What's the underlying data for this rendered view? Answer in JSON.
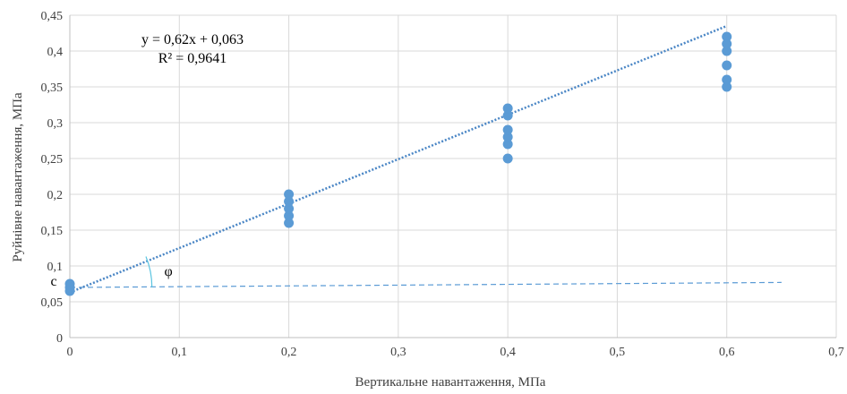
{
  "chart_data": {
    "type": "scatter",
    "xlabel": "Вертикальне навантаження, МПа",
    "ylabel": "Руйнівне навантаження, МПа",
    "xlim": [
      0,
      0.7
    ],
    "ylim": [
      0,
      0.45
    ],
    "x_ticks": [
      "0",
      "0,1",
      "0,2",
      "0,3",
      "0,4",
      "0,5",
      "0,6",
      "0,7"
    ],
    "y_ticks": [
      "0",
      "0,05",
      "0,1",
      "0,15",
      "0,2",
      "0,25",
      "0,3",
      "0,35",
      "0,4",
      "0,45"
    ],
    "grid": true,
    "series": [
      {
        "points": [
          {
            "x": 0,
            "y": 0.065
          },
          {
            "x": 0,
            "y": 0.07
          },
          {
            "x": 0,
            "y": 0.075
          },
          {
            "x": 0.2,
            "y": 0.16
          },
          {
            "x": 0.2,
            "y": 0.17
          },
          {
            "x": 0.2,
            "y": 0.18
          },
          {
            "x": 0.2,
            "y": 0.19
          },
          {
            "x": 0.2,
            "y": 0.2
          },
          {
            "x": 0.4,
            "y": 0.25
          },
          {
            "x": 0.4,
            "y": 0.27
          },
          {
            "x": 0.4,
            "y": 0.28
          },
          {
            "x": 0.4,
            "y": 0.29
          },
          {
            "x": 0.4,
            "y": 0.31
          },
          {
            "x": 0.4,
            "y": 0.32
          },
          {
            "x": 0.6,
            "y": 0.35
          },
          {
            "x": 0.6,
            "y": 0.36
          },
          {
            "x": 0.6,
            "y": 0.38
          },
          {
            "x": 0.6,
            "y": 0.4
          },
          {
            "x": 0.6,
            "y": 0.41
          },
          {
            "x": 0.6,
            "y": 0.42
          }
        ],
        "color": "#5b9bd5"
      }
    ],
    "trendline": {
      "slope": 0.62,
      "intercept": 0.063,
      "x_range": [
        0,
        0.6
      ],
      "color": "#4a86c5",
      "equation": "y = 0,62x + 0,063",
      "r_squared": "R² = 0,9641"
    },
    "reference_line": {
      "x_range": [
        0,
        0.65
      ],
      "y_range": [
        0.07,
        0.077
      ],
      "color": "#5b9bd5"
    },
    "annotations": {
      "c_label": "c",
      "c_value": 0.07,
      "phi_label": "φ",
      "phi_x": 0.09,
      "phi_y": 0.086
    }
  }
}
